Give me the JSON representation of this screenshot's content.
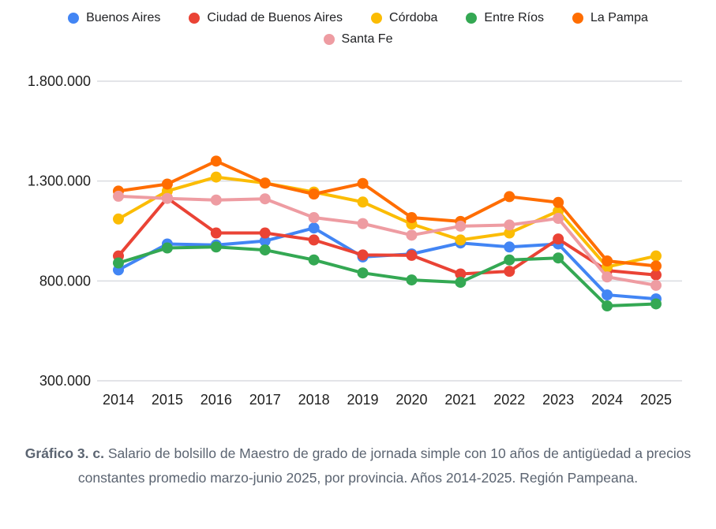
{
  "caption": {
    "label": "Gráfico 3. c.",
    "text": " Salario de bolsillo de Maestro de grado de jornada simple con 10 años de antigüedad a precios constantes promedio marzo-junio 2025, por provincia. Años 2014-2025. Región Pampeana."
  },
  "chart_data": {
    "type": "line",
    "legend_position": "top",
    "grid": true,
    "grid_color": "#dadce0",
    "axis_text_color": "#1f1f1f",
    "background_color": "#ffffff",
    "xlabel": "",
    "ylabel": "",
    "ylim": [
      300000,
      1800000
    ],
    "yticks": [
      {
        "label": "1.800.000",
        "value": 1800000
      },
      {
        "label": "1.300.000",
        "value": 1300000
      },
      {
        "label": "800.000",
        "value": 800000
      },
      {
        "label": "300.000",
        "value": 300000
      }
    ],
    "categories": [
      "2014",
      "2015",
      "2016",
      "2017",
      "2018",
      "2019",
      "2020",
      "2021",
      "2022",
      "2023",
      "2024",
      "2025"
    ],
    "series": [
      {
        "name": "Buenos Aires",
        "color": "#4285F4",
        "values": [
          855000,
          985000,
          980000,
          1000000,
          1065000,
          920000,
          935000,
          990000,
          970000,
          985000,
          730000,
          710000
        ]
      },
      {
        "name": "Ciudad de Buenos Aires",
        "color": "#EA4335",
        "values": [
          925000,
          1215000,
          1040000,
          1040000,
          1005000,
          930000,
          928000,
          835000,
          848000,
          1010000,
          852000,
          830000
        ]
      },
      {
        "name": "Córdoba",
        "color": "#FBBC04",
        "values": [
          1110000,
          1250000,
          1320000,
          1290000,
          1245000,
          1195000,
          1085000,
          1005000,
          1040000,
          1150000,
          870000,
          925000
        ]
      },
      {
        "name": "Entre Ríos",
        "color": "#34A853",
        "values": [
          890000,
          965000,
          970000,
          955000,
          905000,
          840000,
          805000,
          793000,
          905000,
          915000,
          675000,
          685000
        ]
      },
      {
        "name": "La Pampa",
        "color": "#FF6D00",
        "values": [
          1250000,
          1285000,
          1400000,
          1290000,
          1235000,
          1288000,
          1117000,
          1098000,
          1222000,
          1193000,
          900000,
          875000
        ]
      },
      {
        "name": "Santa Fe",
        "color": "#EE9CA2",
        "values": [
          1224000,
          1213000,
          1205000,
          1211000,
          1117000,
          1087000,
          1029000,
          1074000,
          1080000,
          1113000,
          820000,
          778000
        ]
      }
    ]
  }
}
